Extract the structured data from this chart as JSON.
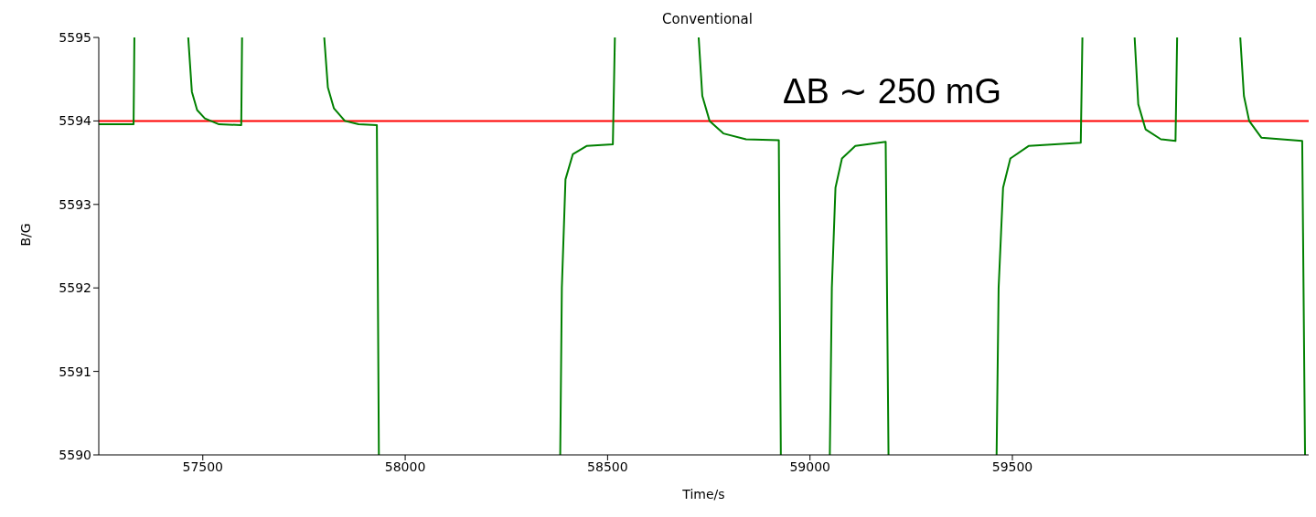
{
  "chart_data": {
    "type": "line",
    "title": "Conventional",
    "xlabel": "Time/s",
    "ylabel": "B/G",
    "xlim": [
      57243,
      60232
    ],
    "ylim": [
      5590,
      5595
    ],
    "xticks": [
      57500,
      58000,
      58500,
      59000,
      59500
    ],
    "yticks": [
      5590,
      5591,
      5592,
      5593,
      5594,
      5595
    ],
    "grid": false,
    "legend": false,
    "marker": "none",
    "line_style": "solid",
    "annotations": [
      "ΔB ∼ 250 mG"
    ],
    "ref_lines": [
      {
        "axis": "y",
        "value": 5594,
        "color": "#ff0000"
      }
    ],
    "series": [
      {
        "color": "#008000",
        "x": [
          57243,
          57329,
          57331,
          57400,
          57464,
          57473,
          57486,
          57505,
          57540,
          57595,
          57597,
          57700,
          57800,
          57809,
          57824,
          57851,
          57885,
          57930,
          57935,
          58100,
          58383,
          58387,
          58396,
          58414,
          58448,
          58513,
          58518,
          58620,
          58725,
          58734,
          58752,
          58786,
          58842,
          58923,
          58928,
          58990,
          59049,
          59054,
          59063,
          59079,
          59112,
          59187,
          59194,
          59330,
          59461,
          59466,
          59477,
          59495,
          59540,
          59669,
          59673,
          59740,
          59802,
          59811,
          59829,
          59867,
          59903,
          59907,
          59990,
          60063,
          60072,
          60085,
          60115,
          60216,
          60223
        ],
        "values": [
          5593.96,
          5593.96,
          5595,
          null,
          5595,
          5594.35,
          5594.13,
          5594.03,
          5593.96,
          5593.95,
          5595,
          null,
          5595,
          5594.4,
          5594.15,
          5594.0,
          5593.96,
          5593.95,
          5590,
          null,
          5590,
          5592.0,
          5593.3,
          5593.6,
          5593.7,
          5593.72,
          5595,
          null,
          5595,
          5594.3,
          5594.0,
          5593.85,
          5593.78,
          5593.77,
          5590,
          null,
          5590,
          5592.0,
          5593.2,
          5593.55,
          5593.7,
          5593.75,
          5590,
          null,
          5590,
          5592.0,
          5593.2,
          5593.55,
          5593.7,
          5593.74,
          5595,
          null,
          5595,
          5594.2,
          5593.9,
          5593.78,
          5593.76,
          5595,
          null,
          5595,
          5594.3,
          5594.0,
          5593.8,
          5593.76,
          5590
        ]
      }
    ]
  }
}
